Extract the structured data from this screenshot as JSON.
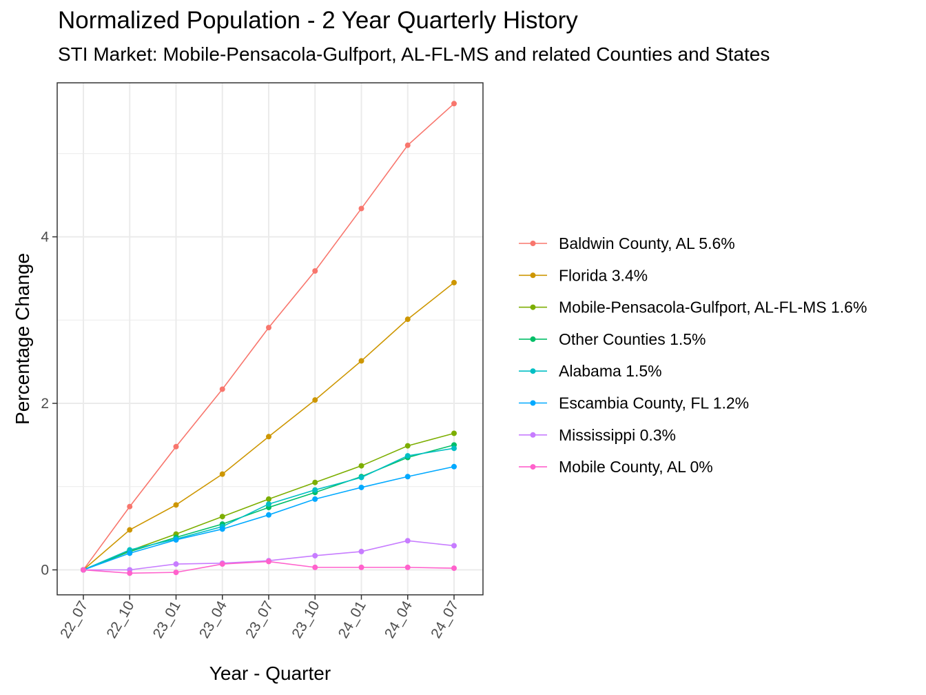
{
  "chart_data": {
    "type": "line",
    "title": "Normalized Population - 2 Year Quarterly History",
    "subtitle": "STI Market: Mobile-Pensacola-Gulfport, AL-FL-MS and related Counties and States",
    "xlabel": "Year - Quarter",
    "ylabel": "Percentage Change",
    "categories": [
      "22_07",
      "22_10",
      "23_01",
      "23_04",
      "23_07",
      "23_10",
      "24_01",
      "24_04",
      "24_07"
    ],
    "ylim": [
      -0.3,
      5.85
    ],
    "yticks": [
      0,
      2,
      4
    ],
    "grid": true,
    "legend_position": "right",
    "series": [
      {
        "name": "Baldwin County, AL 5.6%",
        "color": "#F8766D",
        "values": [
          0,
          0.76,
          1.48,
          2.17,
          2.91,
          3.59,
          4.34,
          5.1,
          5.6
        ]
      },
      {
        "name": "Florida 3.4%",
        "color": "#CD9600",
        "values": [
          0,
          0.48,
          0.78,
          1.15,
          1.6,
          2.04,
          2.51,
          3.01,
          3.45
        ]
      },
      {
        "name": "Mobile-Pensacola-Gulfport, AL-FL-MS 1.6%",
        "color": "#7CAE00",
        "values": [
          0,
          0.23,
          0.43,
          0.64,
          0.85,
          1.05,
          1.25,
          1.49,
          1.64
        ]
      },
      {
        "name": "Other Counties 1.5%",
        "color": "#00BE67",
        "values": [
          0,
          0.22,
          0.39,
          0.55,
          0.75,
          0.93,
          1.12,
          1.35,
          1.5
        ]
      },
      {
        "name": "Alabama 1.5%",
        "color": "#00BFC4",
        "values": [
          0,
          0.24,
          0.37,
          0.52,
          0.79,
          0.96,
          1.11,
          1.37,
          1.46
        ]
      },
      {
        "name": "Escambia County, FL 1.2%",
        "color": "#00A9FF",
        "values": [
          0,
          0.2,
          0.36,
          0.49,
          0.66,
          0.85,
          0.99,
          1.12,
          1.24
        ]
      },
      {
        "name": "Mississippi 0.3%",
        "color": "#C77CFF",
        "values": [
          0,
          0.0,
          0.07,
          0.08,
          0.11,
          0.17,
          0.22,
          0.35,
          0.29
        ]
      },
      {
        "name": "Mobile County, AL 0%",
        "color": "#FF61CC",
        "values": [
          0,
          -0.04,
          -0.03,
          0.07,
          0.1,
          0.03,
          0.03,
          0.03,
          0.02
        ]
      }
    ]
  }
}
